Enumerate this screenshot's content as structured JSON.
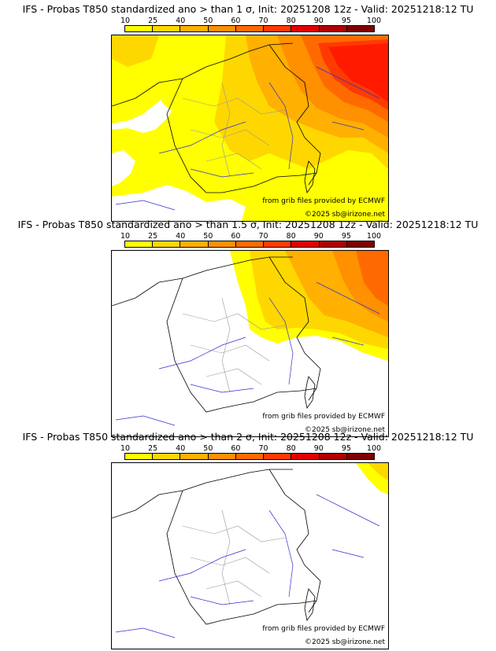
{
  "colors": {
    "scale": [
      "#ffff00",
      "#ffd700",
      "#ffb000",
      "#ff9000",
      "#ff6a00",
      "#ff3a00",
      "#e00000",
      "#b00000",
      "#800000"
    ],
    "country_border": "#000000",
    "region_border": "#aaaaaa",
    "river": "#3030d0"
  },
  "scale": {
    "ticks": [
      "10",
      "25",
      "40",
      "50",
      "60",
      "70",
      "80",
      "90",
      "95",
      "100"
    ]
  },
  "panels": [
    {
      "title": "IFS - Probas T850  standardized ano > than 1 σ, Init: 20251208 12z - Valid: 20251218:12 TU",
      "credit_source": "from grib files provided by ECMWF",
      "credit_site": "©2025 sb@irizone.net"
    },
    {
      "title": "IFS - Probas T850  standardized ano > than 1.5 σ, Init: 20251208 12z - Valid: 20251218:12 TU",
      "credit_source": "from grib files provided by ECMWF",
      "credit_site": "©2025 sb@irizone.net"
    },
    {
      "title": "IFS - Probas T850  standardized ano > than 2 σ, Init: 20251208 12z - Valid: 20251218:12 TU",
      "credit_source": "from grib files provided by ECMWF",
      "credit_site": "©2025 sb@irizone.net"
    }
  ]
}
